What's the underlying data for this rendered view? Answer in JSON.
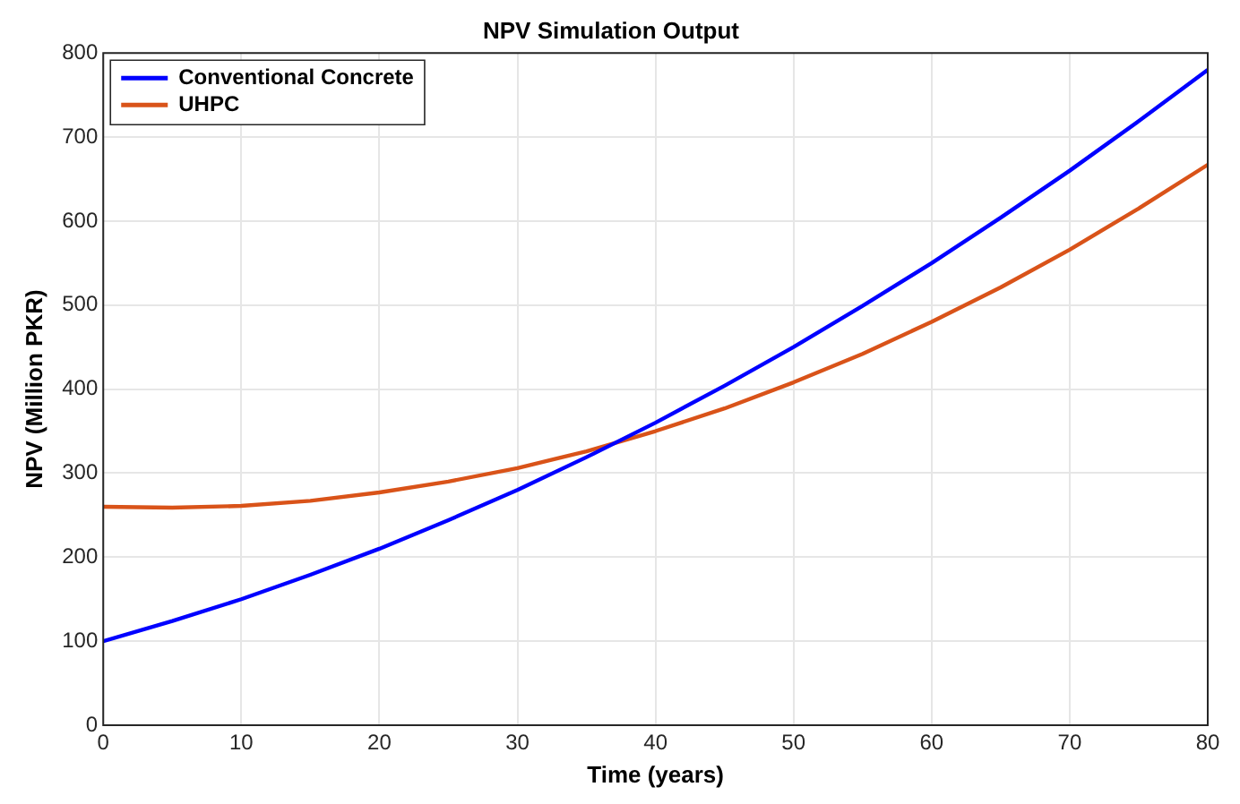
{
  "chart_data": {
    "type": "line",
    "title": "NPV Simulation Output",
    "xlabel": "Time (years)",
    "ylabel": "NPV (Million PKR)",
    "x": [
      0,
      5,
      10,
      15,
      20,
      25,
      30,
      35,
      40,
      45,
      50,
      55,
      60,
      65,
      70,
      75,
      80
    ],
    "series": [
      {
        "name": "Conventional Concrete",
        "color": "#0000ff",
        "values": [
          100,
          124,
          150,
          179,
          210,
          244,
          280,
          319,
          360,
          404,
          450,
          499,
          550,
          604,
          660,
          719,
          780
        ]
      },
      {
        "name": "UHPC",
        "color": "#d95319",
        "values": [
          260,
          259,
          261,
          267,
          277,
          290,
          306,
          326,
          350,
          377,
          408,
          442,
          480,
          521,
          566,
          615,
          667
        ]
      }
    ],
    "xlim": [
      0,
      80
    ],
    "xticks": [
      0,
      10,
      20,
      30,
      40,
      50,
      60,
      70,
      80
    ],
    "ylim": [
      0,
      800
    ],
    "yticks": [
      0,
      100,
      200,
      300,
      400,
      500,
      600,
      700,
      800
    ],
    "grid": true,
    "legend": "top left",
    "marker": "none",
    "line_style": "solid"
  }
}
